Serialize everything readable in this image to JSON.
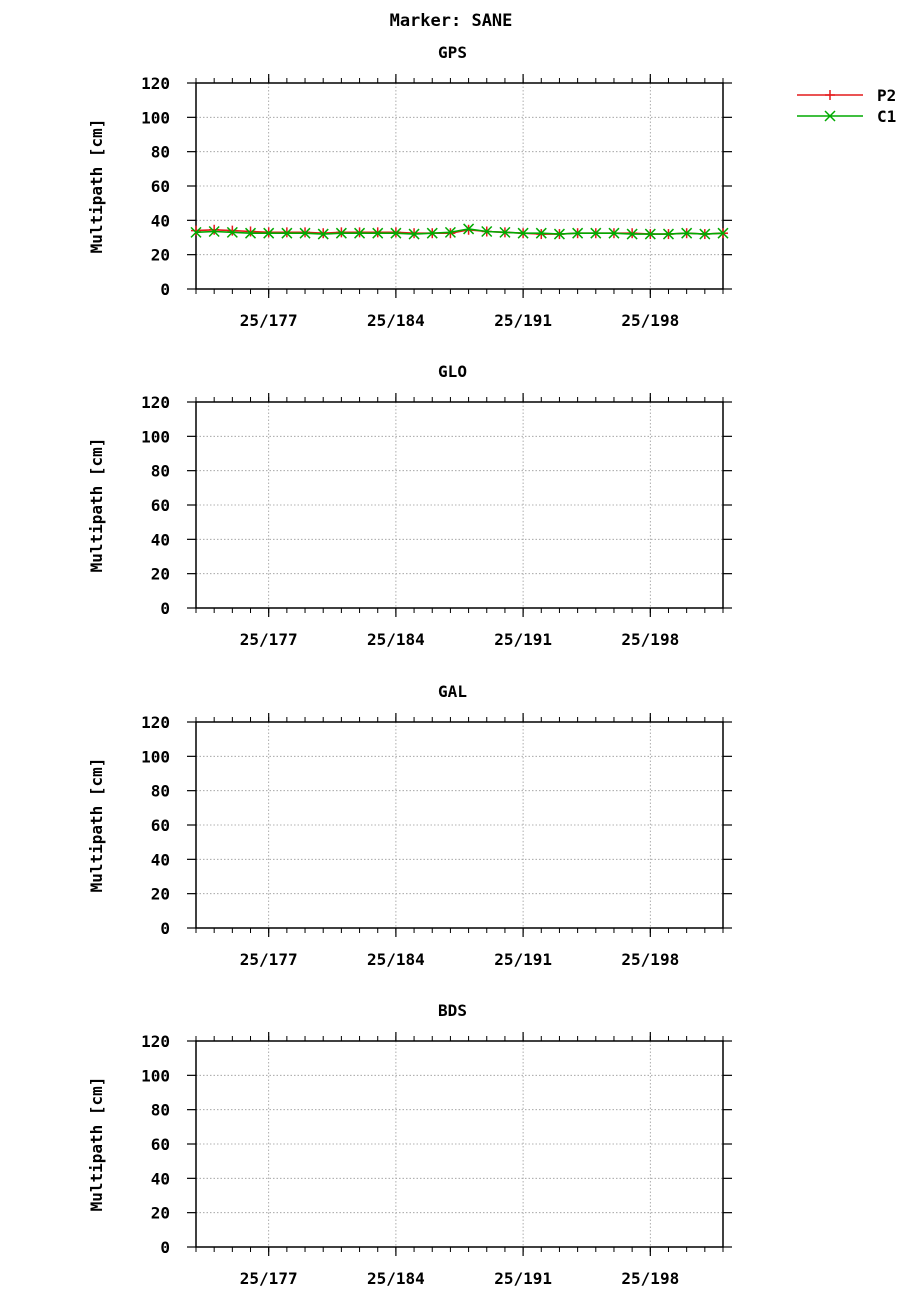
{
  "figure": {
    "title": "Marker: SANE",
    "legend": {
      "placement": "top-right-outside"
    }
  },
  "colors": {
    "P2": "#e41a1c",
    "C1": "#00aa00",
    "grid": "#999999",
    "axis": "#000000"
  },
  "chart_data": [
    {
      "type": "line",
      "title": "GPS",
      "ylabel": "Multipath [cm]",
      "xlabel": "",
      "ylim": [
        0,
        120
      ],
      "yticks": [
        "0",
        "20",
        "40",
        "60",
        "80",
        "100",
        "120"
      ],
      "xlim": [
        173,
        202
      ],
      "xticks": [
        {
          "x": 177,
          "label": "25/177"
        },
        {
          "x": 184,
          "label": "25/184"
        },
        {
          "x": 191,
          "label": "25/191"
        },
        {
          "x": 198,
          "label": "25/198"
        }
      ],
      "grid": true,
      "legend": "top-right",
      "series": [
        {
          "name": "P2",
          "marker": "+",
          "x": [
            173,
            174,
            175,
            176,
            177,
            178,
            179,
            180,
            181,
            182,
            183,
            184,
            185,
            186,
            187,
            188,
            189,
            190,
            191,
            192,
            193,
            194,
            195,
            196,
            197,
            198,
            199,
            200,
            201,
            202
          ],
          "y": [
            34,
            34.5,
            34,
            33.5,
            33,
            33,
            33,
            32.5,
            33,
            33,
            33,
            33,
            32.5,
            32.5,
            32.5,
            34.5,
            33.5,
            33,
            32.5,
            32,
            32,
            32.5,
            32.5,
            32.5,
            32.5,
            32,
            32,
            32.5,
            32,
            32.5
          ]
        },
        {
          "name": "C1",
          "marker": "x",
          "x": [
            173,
            174,
            175,
            176,
            177,
            178,
            179,
            180,
            181,
            182,
            183,
            184,
            185,
            186,
            187,
            188,
            189,
            190,
            191,
            192,
            193,
            194,
            195,
            196,
            197,
            198,
            199,
            200,
            201,
            202
          ],
          "y": [
            33,
            33.5,
            33,
            32.5,
            32.5,
            32.5,
            32.5,
            32,
            32.5,
            32.5,
            32.5,
            32.5,
            32,
            32.5,
            33,
            35,
            33.5,
            33,
            32.5,
            32.5,
            32,
            32.5,
            32.5,
            32.5,
            32,
            32,
            32,
            32.5,
            32,
            32.5
          ]
        }
      ]
    },
    {
      "type": "line",
      "title": "GLO",
      "ylabel": "Multipath [cm]",
      "xlabel": "",
      "ylim": [
        0,
        120
      ],
      "yticks": [
        "0",
        "20",
        "40",
        "60",
        "80",
        "100",
        "120"
      ],
      "xlim": [
        173,
        202
      ],
      "xticks": [
        {
          "x": 177,
          "label": "25/177"
        },
        {
          "x": 184,
          "label": "25/184"
        },
        {
          "x": 191,
          "label": "25/191"
        },
        {
          "x": 198,
          "label": "25/198"
        }
      ],
      "grid": true,
      "series": []
    },
    {
      "type": "line",
      "title": "GAL",
      "ylabel": "Multipath [cm]",
      "xlabel": "",
      "ylim": [
        0,
        120
      ],
      "yticks": [
        "0",
        "20",
        "40",
        "60",
        "80",
        "100",
        "120"
      ],
      "xlim": [
        173,
        202
      ],
      "xticks": [
        {
          "x": 177,
          "label": "25/177"
        },
        {
          "x": 184,
          "label": "25/184"
        },
        {
          "x": 191,
          "label": "25/191"
        },
        {
          "x": 198,
          "label": "25/198"
        }
      ],
      "grid": true,
      "series": []
    },
    {
      "type": "line",
      "title": "BDS",
      "ylabel": "Multipath [cm]",
      "xlabel": "",
      "ylim": [
        0,
        120
      ],
      "yticks": [
        "0",
        "20",
        "40",
        "60",
        "80",
        "100",
        "120"
      ],
      "xlim": [
        173,
        202
      ],
      "xticks": [
        {
          "x": 177,
          "label": "25/177"
        },
        {
          "x": 184,
          "label": "25/184"
        },
        {
          "x": 191,
          "label": "25/191"
        },
        {
          "x": 198,
          "label": "25/198"
        }
      ],
      "grid": true,
      "series": []
    }
  ]
}
